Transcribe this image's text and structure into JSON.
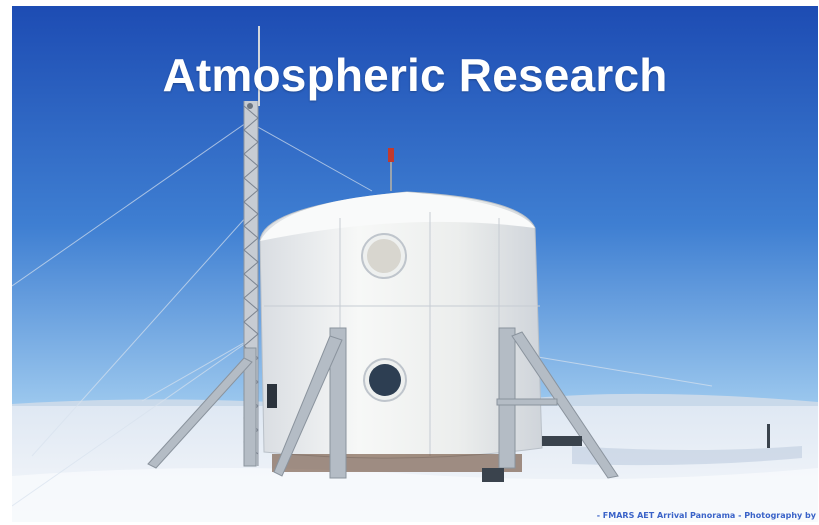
{
  "slide": {
    "title": "Atmospheric Research",
    "photo_credit": "- FMARS AET Arrival Panorama - Photography by"
  },
  "colors": {
    "sky_top": "#1f4fb6",
    "sky_bottom": "#8fc0ea",
    "snow": "#eef3f8",
    "habitat": "#f2f3f1",
    "title_text": "#ffffff"
  }
}
